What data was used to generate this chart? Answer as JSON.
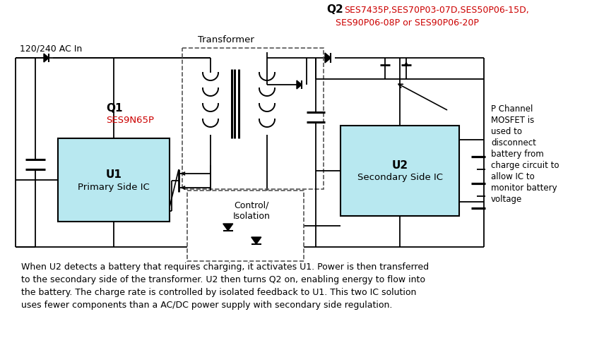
{
  "figsize": [
    8.55,
    4.79
  ],
  "dpi": 100,
  "bg_color": "#ffffff",
  "ac_in_label": "120/240 AC In",
  "transformer_label": "Transformer",
  "q1_label": "Q1",
  "q1_part": "SES9N65P",
  "q2_label": "Q2",
  "q2_parts_line1": "SES7435P,SES70P03-07D,SES50P06-15D,",
  "q2_parts_line2": "SES90P06-08P or SES90P06-20P",
  "u1_line1": "U1",
  "u1_line2": "Primary Side IC",
  "u2_line1": "U2",
  "u2_line2": "Secondary Side IC",
  "control_label": "Control/\nIsolation",
  "p_channel_line1": "P Channel",
  "p_channel_line2": "MOSFET is",
  "p_channel_line3": "used to",
  "p_channel_line4": "disconnect",
  "p_channel_line5": "battery from",
  "p_channel_line6": "charge circuit to",
  "p_channel_line7": "allow IC to",
  "p_channel_line8": "monitor battery",
  "p_channel_line9": "voltage",
  "body_text_l1": "When U2 detects a battery that requires charging, it activates U1. Power is then transferred",
  "body_text_l2": "to the secondary side of the transformer. U2 then turns Q2 on, enabling energy to flow into",
  "body_text_l3": "the battery. The charge rate is controlled by isolated feedback to U1. This two IC solution",
  "body_text_l4": "uses fewer components than a AC/DC power supply with secondary side regulation.",
  "box_fill_color": "#b8e8f0",
  "box_edge_color": "#000000",
  "line_color": "#000000",
  "red_color": "#cc0000",
  "gray_color": "#808080",
  "dashed_color": "#555555"
}
